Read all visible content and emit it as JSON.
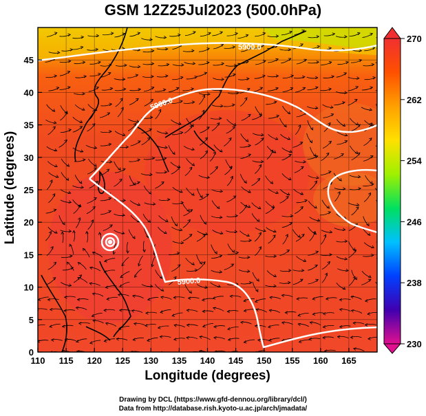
{
  "title": "GSM 12Z25Jul2023 (500.0hPa)",
  "axes": {
    "xlabel": "Longitude (degrees)",
    "ylabel": "Latitude  (degrees)",
    "xlim": [
      110,
      170
    ],
    "ylim": [
      0,
      50
    ],
    "x_ticks": [
      "110",
      "115",
      "120",
      "125",
      "130",
      "135",
      "140",
      "145",
      "150",
      "155",
      "160",
      "165"
    ],
    "y_ticks": [
      "0",
      "5",
      "10",
      "15",
      "20",
      "25",
      "30",
      "35",
      "40",
      "45"
    ]
  },
  "colorbar": {
    "range": [
      230,
      270
    ],
    "tick_labels": [
      "270",
      "262",
      "254",
      "246",
      "238",
      "230"
    ],
    "colors": [
      "#e01090",
      "#4000b0",
      "#0040ff",
      "#00c0ff",
      "#00e060",
      "#a0f000",
      "#ffe000",
      "#ffa000",
      "#ff5000",
      "#f03030"
    ]
  },
  "contours": [
    {
      "label": "5900.0"
    },
    {
      "label": "5900.0"
    },
    {
      "label": "5900.0"
    }
  ],
  "credits": {
    "line1": "Drawing by DCL (https://www.gfd-dennou.org/library/dcl/)",
    "line2": "Data from http://database.rish.kyoto-u.ac.jp/arch/jmadata/"
  }
}
